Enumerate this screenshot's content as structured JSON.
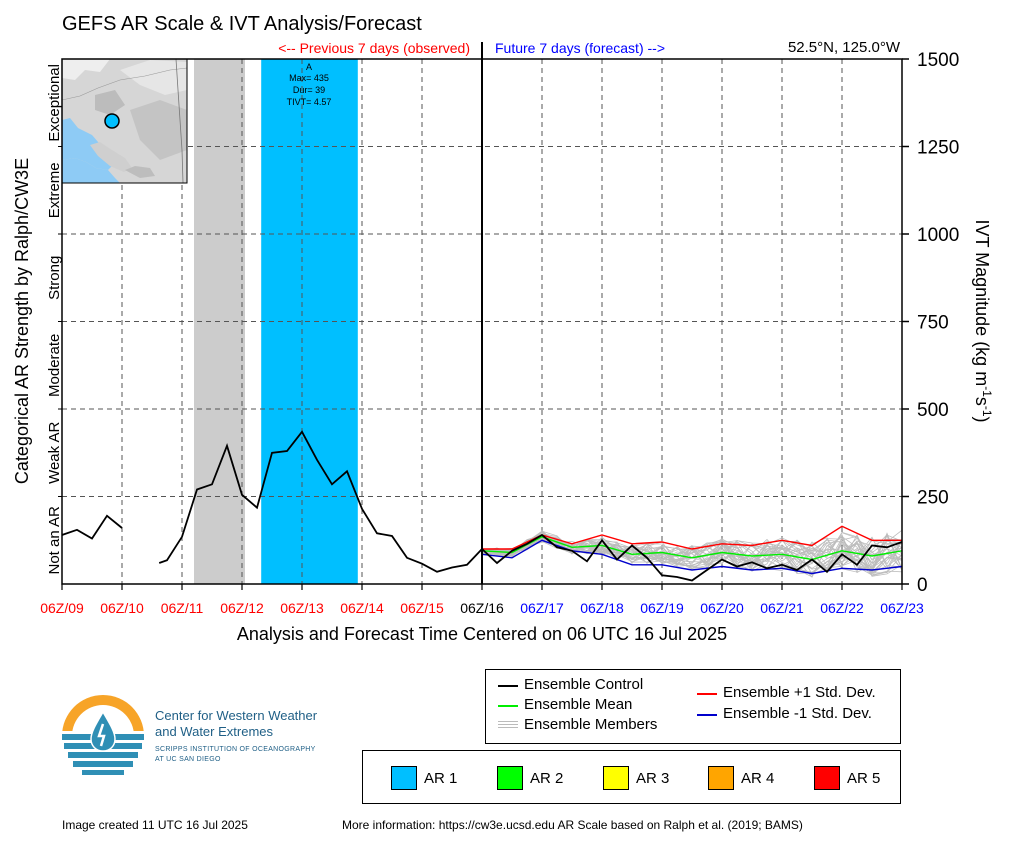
{
  "header": {
    "title": "GEFS AR Scale & IVT Analysis/Forecast",
    "previous_label": "<-- Previous 7 days (observed)",
    "future_label": "Future 7 days (forecast) -->",
    "location": "52.5°N, 125.0°W"
  },
  "axes": {
    "left_label": "Categorical AR Strength by Ralph/CW3E",
    "right_label_main": "IVT Magnitude (kg m",
    "right_label_sup1": "-1",
    "right_label_mid": "s",
    "right_label_sup2": "-1",
    "right_label_end": ")",
    "x_label": "Analysis and Forecast Time Centered on 06 UTC 16 Jul 2025",
    "categories": [
      "Not an AR",
      "Weak AR",
      "Moderate",
      "Strong",
      "Extreme",
      "Exceptional"
    ],
    "colors": {
      "observed": "#ff0000",
      "current": "#000000",
      "forecast": "#0000ff"
    }
  },
  "event_box": {
    "label_a": "A",
    "label_max": "Max= 435",
    "label_dur": "Dur= 39",
    "label_tivt": "TIVT= 4.57"
  },
  "chart_data": {
    "type": "line",
    "ylim": [
      0,
      1500
    ],
    "yticks": [
      0,
      250,
      500,
      750,
      1000,
      1250,
      1500
    ],
    "xlim": [
      0,
      14
    ],
    "x_tick_labels": [
      "06Z/09",
      "06Z/10",
      "06Z/11",
      "06Z/12",
      "06Z/13",
      "06Z/14",
      "06Z/15",
      "06Z/16",
      "06Z/17",
      "06Z/18",
      "06Z/19",
      "06Z/20",
      "06Z/21",
      "06Z/22",
      "06Z/23"
    ],
    "x_tick_status": [
      "observed",
      "observed",
      "observed",
      "observed",
      "observed",
      "observed",
      "observed",
      "current",
      "forecast",
      "forecast",
      "forecast",
      "forecast",
      "forecast",
      "forecast",
      "forecast"
    ],
    "shaded_regions": [
      {
        "x0": 2.2,
        "x1": 3.05,
        "color": "#cccccc",
        "kind": "gray"
      },
      {
        "x0": 3.32,
        "x1": 4.93,
        "color": "#00bfff",
        "kind": "AR 1"
      }
    ],
    "observed_segments": [
      [
        [
          0,
          140
        ],
        [
          0.25,
          155
        ],
        [
          0.5,
          130
        ],
        [
          0.75,
          195
        ],
        [
          1.0,
          160
        ]
      ],
      [
        [
          1.62,
          60
        ],
        [
          1.75,
          68
        ],
        [
          2.0,
          135
        ],
        [
          2.25,
          270
        ],
        [
          2.5,
          285
        ],
        [
          2.75,
          395
        ],
        [
          3.0,
          255
        ],
        [
          3.25,
          218
        ],
        [
          3.5,
          375
        ],
        [
          3.75,
          380
        ],
        [
          4.0,
          435
        ],
        [
          4.25,
          355
        ],
        [
          4.5,
          285
        ],
        [
          4.75,
          322
        ],
        [
          5.0,
          215
        ],
        [
          5.25,
          145
        ],
        [
          5.5,
          137
        ],
        [
          5.75,
          75
        ],
        [
          6.0,
          58
        ],
        [
          6.25,
          35
        ],
        [
          6.5,
          47
        ],
        [
          6.75,
          55
        ],
        [
          7.0,
          100
        ]
      ]
    ],
    "series": [
      {
        "name": "Ensemble Control",
        "color": "#000000",
        "x": [
          7.0,
          7.25,
          7.5,
          7.75,
          8.0,
          8.25,
          8.5,
          8.75,
          9.0,
          9.25,
          9.5,
          9.75,
          10.0,
          10.25,
          10.5,
          10.75,
          11.0,
          11.25,
          11.5,
          11.75,
          12.0,
          12.25,
          12.5,
          12.75,
          13.0,
          13.25,
          13.5,
          13.75,
          14.0
        ],
        "values": [
          100,
          60,
          95,
          115,
          140,
          105,
          95,
          65,
          125,
          70,
          110,
          75,
          25,
          20,
          10,
          40,
          70,
          50,
          62,
          45,
          55,
          40,
          70,
          35,
          85,
          55,
          110,
          105,
          120
        ]
      },
      {
        "name": "Ensemble Mean",
        "color": "#00ee00",
        "x": [
          7.0,
          7.5,
          8.0,
          8.5,
          9.0,
          9.5,
          10.0,
          10.5,
          11.0,
          11.5,
          12.0,
          12.5,
          13.0,
          13.5,
          14.0
        ],
        "values": [
          95,
          90,
          135,
          105,
          110,
          85,
          90,
          75,
          90,
          80,
          85,
          70,
          95,
          80,
          95
        ]
      },
      {
        "name": "Ensemble +1 Std. Dev.",
        "color": "#ff0000",
        "x": [
          7.0,
          7.5,
          8.0,
          8.5,
          9.0,
          9.5,
          10.0,
          10.5,
          11.0,
          11.5,
          12.0,
          12.5,
          13.0,
          13.5,
          14.0
        ],
        "values": [
          100,
          100,
          140,
          115,
          140,
          115,
          120,
          100,
          115,
          110,
          125,
          110,
          165,
          125,
          125
        ]
      },
      {
        "name": "Ensemble -1 Std. Dev.",
        "color": "#0000cc",
        "x": [
          7.0,
          7.5,
          8.0,
          8.5,
          9.0,
          9.5,
          10.0,
          10.5,
          11.0,
          11.5,
          12.0,
          12.5,
          13.0,
          13.5,
          14.0
        ],
        "values": [
          85,
          75,
          125,
          95,
          85,
          55,
          55,
          40,
          50,
          40,
          45,
          30,
          45,
          40,
          50
        ]
      }
    ]
  },
  "legend": {
    "lines": [
      {
        "label": "Ensemble Control",
        "color": "#000000"
      },
      {
        "label": "Ensemble Mean",
        "color": "#00ee00"
      },
      {
        "label": "Ensemble Members",
        "color": "#aaaaaa"
      },
      {
        "label": "Ensemble +1 Std. Dev.",
        "color": "#ff0000"
      },
      {
        "label": "Ensemble -1 Std. Dev.",
        "color": "#0000cc"
      }
    ],
    "ar_levels": [
      {
        "label": "AR 1",
        "color": "#00bfff"
      },
      {
        "label": "AR 2",
        "color": "#00ff00"
      },
      {
        "label": "AR 3",
        "color": "#ffff00"
      },
      {
        "label": "AR 4",
        "color": "#ffa500"
      },
      {
        "label": "AR 5",
        "color": "#ff0000"
      }
    ]
  },
  "logo": {
    "line1": "Center for Western Weather",
    "line2": "and Water Extremes",
    "line3": "SCRIPPS INSTITUTION OF OCEANOGRAPHY",
    "line4": "AT UC SAN DIEGO"
  },
  "footer": {
    "created": "Image created 11 UTC 16 Jul 2025",
    "more_info": "More information: https://cw3e.ucsd.edu AR Scale based on Ralph et al. (2019; BAMS)"
  }
}
